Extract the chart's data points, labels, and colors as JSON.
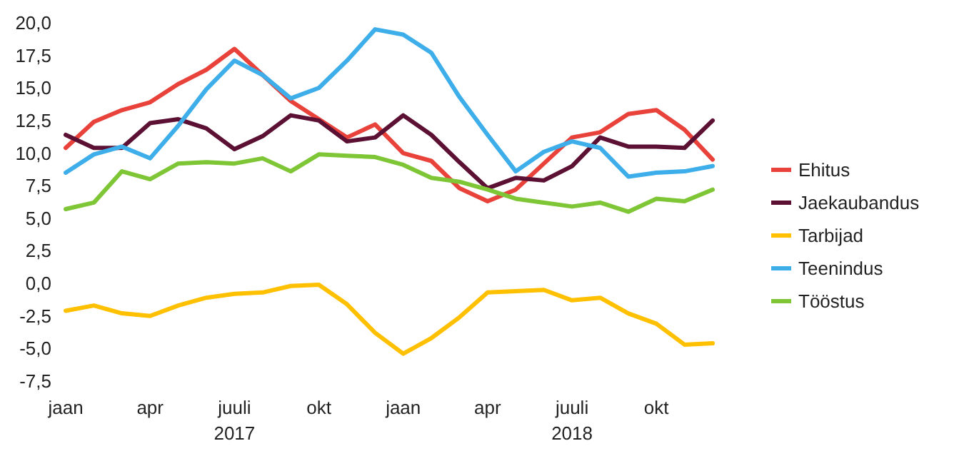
{
  "chart_data": {
    "type": "line",
    "categories": [
      "jaan",
      null,
      null,
      "apr",
      null,
      null,
      "juuli",
      null,
      null,
      "okt",
      null,
      null,
      "jaan",
      null,
      null,
      "apr",
      null,
      null,
      "juuli",
      null,
      null,
      "okt",
      null,
      null
    ],
    "series": [
      {
        "name": "Ehitus",
        "color": "#e8423a",
        "values": [
          10.4,
          12.4,
          13.3,
          13.9,
          15.3,
          16.4,
          18.0,
          16.0,
          14.0,
          12.6,
          11.2,
          12.2,
          10.0,
          9.4,
          7.3,
          6.3,
          7.2,
          9.2,
          11.2,
          11.6,
          13.0,
          13.3,
          11.8,
          9.5
        ]
      },
      {
        "name": "Jaekaubandus",
        "color": "#5c1033",
        "values": [
          11.4,
          10.4,
          10.4,
          12.3,
          12.6,
          11.9,
          10.3,
          11.3,
          12.9,
          12.5,
          10.9,
          11.2,
          12.9,
          11.4,
          9.3,
          7.3,
          8.1,
          7.9,
          9.0,
          11.2,
          10.5,
          10.5,
          10.4,
          12.5
        ]
      },
      {
        "name": "Tarbijad",
        "color": "#ffc000",
        "values": [
          -2.1,
          -1.7,
          -2.3,
          -2.5,
          -1.7,
          -1.1,
          -0.8,
          -0.7,
          -0.2,
          -0.1,
          -1.6,
          -3.8,
          -5.4,
          -4.2,
          -2.6,
          -0.7,
          -0.6,
          -0.5,
          -1.3,
          -1.1,
          -2.3,
          -3.1,
          -4.7,
          -4.6
        ]
      },
      {
        "name": "Teenindus",
        "color": "#3daee9",
        "values": [
          8.5,
          9.9,
          10.5,
          9.6,
          12.1,
          14.9,
          17.1,
          16.0,
          14.2,
          15.0,
          17.1,
          19.5,
          19.1,
          17.7,
          14.3,
          11.4,
          8.6,
          10.1,
          10.9,
          10.4,
          8.2,
          8.5,
          8.6,
          9.0
        ]
      },
      {
        "name": "Tööstus",
        "color": "#7ec636",
        "values": [
          5.7,
          6.2,
          8.6,
          8.0,
          9.2,
          9.3,
          9.2,
          9.6,
          8.6,
          9.9,
          9.8,
          9.7,
          9.1,
          8.1,
          7.8,
          7.2,
          6.5,
          6.2,
          5.9,
          6.2,
          5.5,
          6.5,
          6.3,
          7.2
        ]
      }
    ],
    "ylim": [
      -7.5,
      20
    ],
    "yticks": [
      {
        "value": -7.5,
        "label": "-7,5"
      },
      {
        "value": -5,
        "label": "-5,0"
      },
      {
        "value": -2.5,
        "label": "-2,5"
      },
      {
        "value": 0,
        "label": "0,0"
      },
      {
        "value": 2.5,
        "label": "2,5"
      },
      {
        "value": 5,
        "label": "5,0"
      },
      {
        "value": 7.5,
        "label": "7,5"
      },
      {
        "value": 10,
        "label": "10,0"
      },
      {
        "value": 12.5,
        "label": "12,5"
      },
      {
        "value": 15,
        "label": "15,0"
      },
      {
        "value": 17.5,
        "label": "17,5"
      },
      {
        "value": 20,
        "label": "20,0"
      }
    ],
    "annotations": [
      "2017",
      "2018"
    ],
    "legend": "right",
    "grid": false,
    "marker": "none",
    "line_style": "solid"
  }
}
